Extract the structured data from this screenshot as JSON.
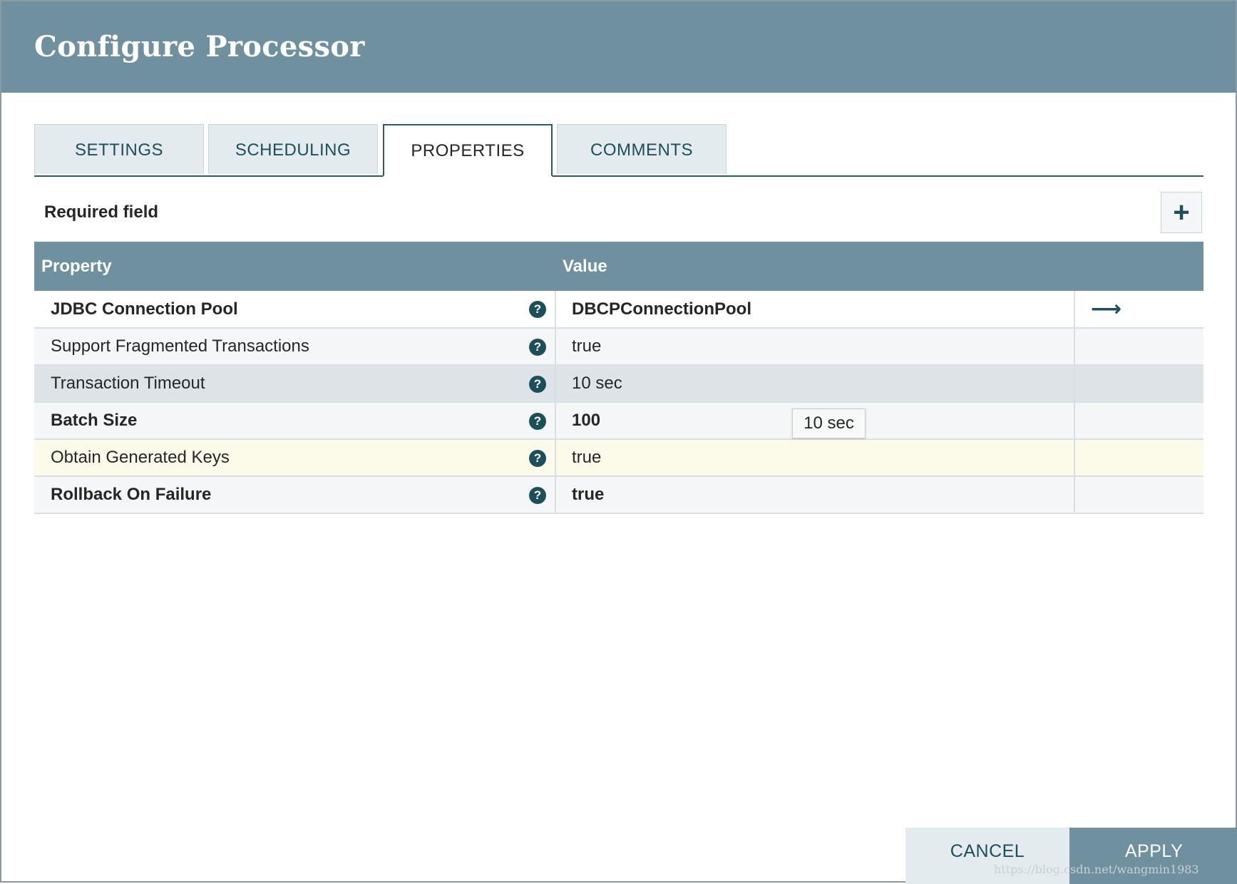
{
  "dialog": {
    "title": "Configure Processor"
  },
  "tabs": [
    {
      "label": "SETTINGS"
    },
    {
      "label": "SCHEDULING"
    },
    {
      "label": "PROPERTIES",
      "active": true
    },
    {
      "label": "COMMENTS"
    }
  ],
  "required_field_label": "Required field",
  "add_property_icon": "plus-icon",
  "table": {
    "headers": {
      "property": "Property",
      "value": "Value"
    },
    "rows": [
      {
        "name": "JDBC Connection Pool",
        "value": "DBCPConnectionPool",
        "required": true,
        "has_link": true
      },
      {
        "name": "Support Fragmented Transactions",
        "value": "true",
        "required": false
      },
      {
        "name": "Transaction Timeout",
        "value": "10 sec",
        "required": false
      },
      {
        "name": "Batch Size",
        "value": "100",
        "required": true
      },
      {
        "name": "Obtain Generated Keys",
        "value": "true",
        "required": false
      },
      {
        "name": "Rollback On Failure",
        "value": "true",
        "required": true
      }
    ]
  },
  "tooltip": {
    "text": "10 sec"
  },
  "footer": {
    "cancel_label": "CANCEL",
    "apply_label": "APPLY"
  },
  "watermark": "https://blog.csdn.net/wangmin1983",
  "colors": {
    "header_bg": "#6e909f",
    "accent": "#1d4f5a",
    "highlight_row": "#fcfbea"
  }
}
